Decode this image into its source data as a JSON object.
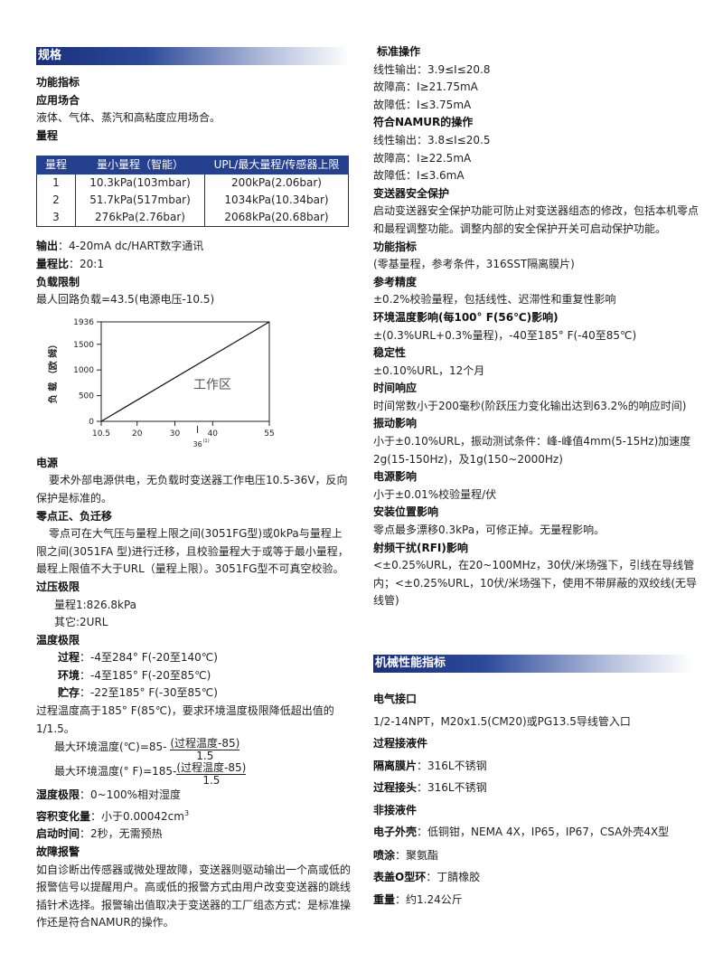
{
  "left": {
    "header": "规格",
    "func_title": "功能指标",
    "app_title": "应用场合",
    "app_text": "液体、气体、蒸汽和高粘度应用场合。",
    "range_title": "量程",
    "table": {
      "headers": [
        "量程",
        "量小量程（智能）",
        "UPL/最大量程/传感器上限"
      ],
      "rows": [
        [
          "1",
          "10.3kPa(103mbar)",
          "200kPa(2.06bar)"
        ],
        [
          "2",
          "51.7kPa(517mbar)",
          "1034kPa(10.34bar)"
        ],
        [
          "3",
          "276kPa(2.76bar)",
          "2068kPa(20.68bar)"
        ]
      ]
    },
    "output_label": "输出",
    "output_value": "：4-20mA dc/HART数字通讯",
    "ratio_label": "量程比",
    "ratio_value": "：20:1",
    "load_title": "负载限制",
    "load_text": "最人回路负载=43.5(电源电压-10.5)",
    "power_title": "电源",
    "power_text": "要术外部电源供电，无负载时变送器工作电压10.5-36V，反向保护是标准的。",
    "zero_title": "零点正、负迁移",
    "zero_text": "零点可在大气压与量程上限之间(3051FG型)或0kPa与量程上限之间(3051FA 型)进行迁移，且校验量程大于或等于最小量程，最程上限值不大于URL（量程上限）。3051FG型不可真空校验。",
    "over_title": "过压极限",
    "over_1": "量程1:826.8kPa",
    "over_2": "其它:2URL",
    "temp_title": "温度极限",
    "temp_rows": [
      {
        "label": "过程",
        "value": "：-4至284° F(-20至140℃)"
      },
      {
        "label": "环境",
        "value": "：-4至185° F(-20至85℃)"
      },
      {
        "label": "贮存",
        "value": "：-22至185° F(-30至85℃)"
      }
    ],
    "temp_note": "过程温度高于185° F(85℃)，要求环境温度极限降低超出值的1/1.5。",
    "formula_c_lhs": "最大环境温度(℃)=85-",
    "formula_f_lhs": "最大环境温度(° F)=185-",
    "formula_num": "(过程温度-85)",
    "formula_den": "1.5",
    "humid_label": "湿度极限",
    "humid_value": "：0~100%相对湿度",
    "vol_label": "容积变化量",
    "vol_value": "：小于0.00042cm",
    "vol_sup": "3",
    "start_label": "启动时间",
    "start_value": "：2秒，无需预热",
    "alarm_title": "故障报警",
    "alarm_text": "如自诊断出传感器或微处理故障，变送器则驱动输出一个高或低的报警信号以提醒用户。高或低的报警方式由用户改变变送器的跳线插针术选择。报警输出值取决于变送器的工厂组态方式：是标准操作还是符合NAMUR的操作。"
  },
  "chart_data": {
    "type": "line",
    "ylabel": "负 载 （欧 姆）",
    "x_ticks": [
      "10.5",
      "20",
      "30",
      "40",
      "55"
    ],
    "x_extra_tick": "36",
    "x_extra_sup": "(1)",
    "y_ticks": [
      "0",
      "500",
      "1000",
      "1500",
      "1936"
    ],
    "xlim": [
      10.5,
      55
    ],
    "ylim": [
      0,
      1936
    ],
    "series": [
      {
        "x": [
          10.5,
          55
        ],
        "y": [
          0,
          1936
        ]
      }
    ],
    "annotation": "工作区"
  },
  "right": {
    "std_title": "标准操作",
    "std_lines": [
      "线性输出：3.9≤I≤20.8",
      "故障高：I≥21.75mA",
      "故障低：I≤3.75mA"
    ],
    "namur_title": "符合NAMUR的操作",
    "namur_lines": [
      "线性输出：3.8≤I≤20.5",
      "故障高：I≥22.5mA",
      "故障低：I≤3.6mA"
    ],
    "safety_title": "变送器安全保护",
    "safety_text": "启动变送器安全保护功能可防止对变送器组态的修改，包括本机零点和最程调整功能。调整内部的安全保护开关可启动保护功能。",
    "perf_title": "功能指标",
    "perf_text": "(零基量程，参考条件，316SST隔离膜片)",
    "acc_title": "参考精度",
    "acc_text": "±0.2%校验量程，包括线性、迟滞性和重复性影响",
    "amb_title": "环境温度影响(每100° F(56℃)影响)",
    "amb_text": "±(0.3%URL+0.3%量程)，-40至185° F(-40至85℃)",
    "stab_title": "稳定性",
    "stab_text": "±0.10%URL，12个月",
    "resp_title": "时间响应",
    "resp_text": "时间常数小于200毫秒(阶跃压力变化输出达到63.2%的响应时间)",
    "vib_title": "振动影响",
    "vib_text": "小于±0.10%URL，振动测试条件：峰-峰值4mm(5-15Hz)加速度2g(15-150Hz)，及1g(150~2000Hz)",
    "pw_title": "电源影响",
    "pw_text": "小于±0.01%校验量程/伏",
    "mount_title": "安装位置影响",
    "mount_text": "零点最多漂移0.3kPa，可修正掉。无量程影响。",
    "rfi_title": "射频干扰(RFI)影响",
    "rfi_text": "<±0.25%URL，在20~100MHz，30伏/米场强下，引线在导线管内；<±0.25%URL，10伏/米场强下，使用不带屏蔽的双绞线(无导线管)",
    "mech_header": "机械性能指标",
    "elec_title": "电气接口",
    "elec_text": "1/2-14NPT，M20x1.5(CM20)或PG13.5导线管入口",
    "wet_title": "过程接液件",
    "dia_label": "隔离膜片",
    "dia_value": "：316L不锈钢",
    "conn_label": "过程接头",
    "conn_value": "：316L不锈钢",
    "nonwet_title": "非接液件",
    "housing_label": "电子外壳",
    "housing_value": "：低铜钳，NEMA 4X，IP65，IP67，CSA外壳4X型",
    "paint_label": "喷涂",
    "paint_value": "：聚氨酯",
    "oring_label": "表盖O型环",
    "oring_value": "：丁腈橡胶",
    "weight_label": "重量",
    "weight_value": "：约1.24公斤"
  }
}
